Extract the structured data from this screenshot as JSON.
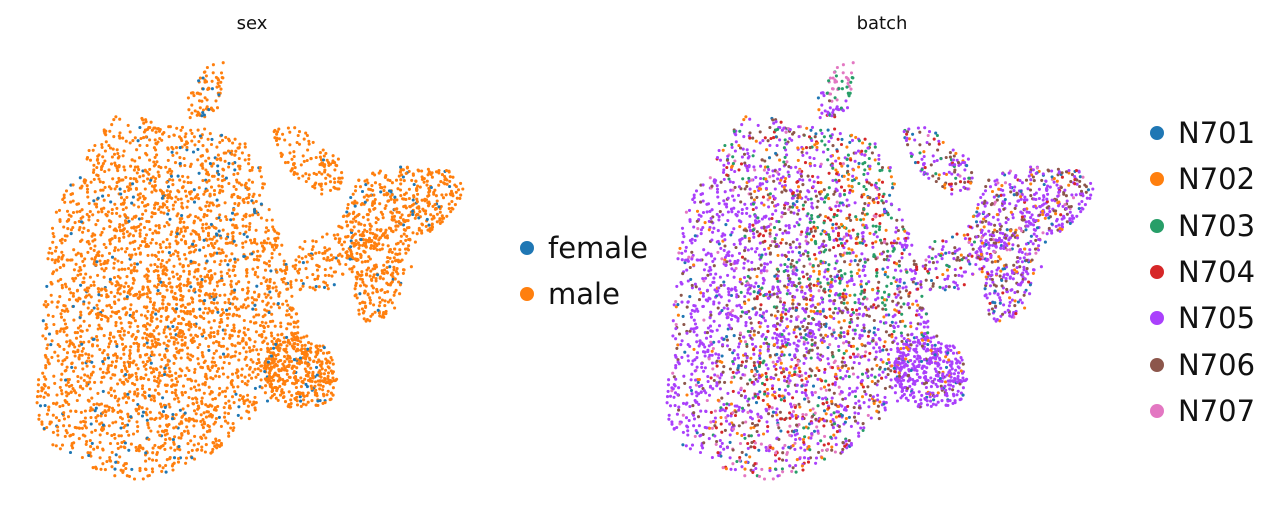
{
  "chart_data": [
    {
      "type": "scatter",
      "title": "sex",
      "xlabel": "",
      "ylabel": "",
      "grid": false,
      "legend_position": "right",
      "legend": [
        "female",
        "male"
      ],
      "series": [
        {
          "name": "female",
          "color": "#1f77b4"
        },
        {
          "name": "male",
          "color": "#ff7f0e"
        }
      ]
    },
    {
      "type": "scatter",
      "title": "batch",
      "xlabel": "",
      "ylabel": "",
      "grid": false,
      "legend_position": "right",
      "legend": [
        "N701",
        "N702",
        "N703",
        "N704",
        "N705",
        "N706",
        "N707"
      ],
      "series": [
        {
          "name": "N701",
          "color": "#1f77b4"
        },
        {
          "name": "N702",
          "color": "#ff7f0e"
        },
        {
          "name": "N703",
          "color": "#279e68"
        },
        {
          "name": "N704",
          "color": "#d62728"
        },
        {
          "name": "N705",
          "color": "#aa40fc"
        },
        {
          "name": "N706",
          "color": "#8c564b"
        },
        {
          "name": "N707",
          "color": "#e377c2"
        }
      ]
    }
  ]
}
